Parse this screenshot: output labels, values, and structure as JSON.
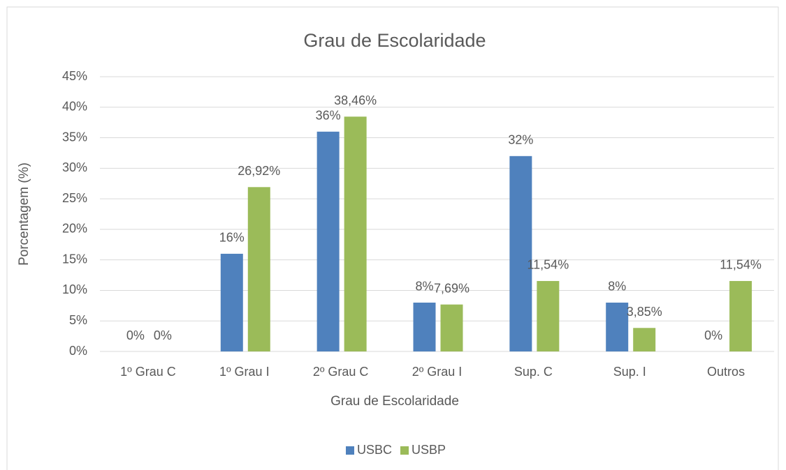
{
  "chart_data": {
    "type": "bar",
    "title": "Grau de Escolaridade",
    "x_label": "Grau de Escolaridade",
    "y_label": "Porcentagem (%)",
    "categories": [
      "1º Grau C",
      "1º Grau I",
      "2º Grau C",
      "2º Grau I",
      "Sup. C",
      "Sup. I",
      "Outros"
    ],
    "series": [
      {
        "name": "USBC",
        "color": "#4f81bd",
        "values": [
          0,
          16,
          36,
          8,
          32,
          8,
          0
        ],
        "value_labels": [
          "0%",
          "16%",
          "36%",
          "8%",
          "32%",
          "8%",
          "0%"
        ]
      },
      {
        "name": "USBP",
        "color": "#9bbb59",
        "values": [
          0,
          26.92,
          38.46,
          7.69,
          11.54,
          3.85,
          11.54
        ],
        "value_labels": [
          "0%",
          "26,92%",
          "38,46%",
          "7,69%",
          "11,54%",
          "3,85%",
          "11,54%"
        ]
      }
    ],
    "ylim": [
      0,
      45
    ],
    "yticks": [
      {
        "value": 0,
        "label": "0%"
      },
      {
        "value": 5,
        "label": "5%"
      },
      {
        "value": 10,
        "label": "10%"
      },
      {
        "value": 15,
        "label": "15%"
      },
      {
        "value": 20,
        "label": "20%"
      },
      {
        "value": 25,
        "label": "25%"
      },
      {
        "value": 30,
        "label": "30%"
      },
      {
        "value": 35,
        "label": "35%"
      },
      {
        "value": 40,
        "label": "40%"
      },
      {
        "value": 45,
        "label": "45%"
      }
    ],
    "grid": true,
    "legend": "bottom"
  }
}
